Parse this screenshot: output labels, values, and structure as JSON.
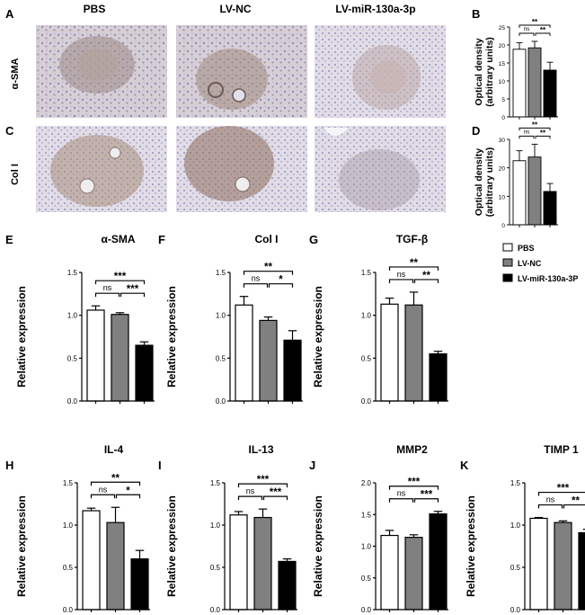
{
  "colors": {
    "pbs": "#ffffff",
    "lvnc": "#808080",
    "lvmir": "#000000",
    "axis": "#000000"
  },
  "panel_letters": {
    "A": "A",
    "B": "B",
    "C": "C",
    "D": "D",
    "E": "E",
    "F": "F",
    "G": "G",
    "H": "H",
    "I": "I",
    "J": "J",
    "K": "K"
  },
  "ihc": {
    "columns": [
      "PBS",
      "LV-NC",
      "LV-miR-130a-3p"
    ],
    "rows": [
      "α-SMA",
      "Col I"
    ]
  },
  "legend": [
    "PBS",
    "LV-NC",
    "LV-miR-130a-3P"
  ],
  "chart_data": [
    {
      "panel": "B",
      "type": "bar",
      "title": "",
      "ylabel": "Optical density (arbitrary units)",
      "categories": [
        "PBS",
        "LV-NC",
        "LV-miR-130a-3P"
      ],
      "values": [
        18.8,
        19.2,
        13
      ],
      "errors": [
        1.8,
        1.8,
        2.2
      ],
      "ylim": [
        0,
        25
      ],
      "yticks": [
        "0",
        "5",
        "10",
        "15",
        "20",
        "25"
      ],
      "sig": {
        "short1": "ns",
        "short2": "**",
        "long": "**"
      }
    },
    {
      "panel": "D",
      "type": "bar",
      "title": "",
      "ylabel": "Optical density (arbitrary units)",
      "categories": [
        "PBS",
        "LV-NC",
        "LV-miR-130a-3P"
      ],
      "values": [
        22.5,
        23.8,
        11.7
      ],
      "errors": [
        3.5,
        4.5,
        2.8
      ],
      "ylim": [
        0,
        30
      ],
      "yticks": [
        "0",
        "10",
        "20",
        "30"
      ],
      "sig": {
        "short1": "ns",
        "short2": "**",
        "long": "**"
      }
    },
    {
      "panel": "E",
      "type": "bar",
      "title": "α-SMA",
      "ylabel": "Relative expression",
      "categories": [
        "PBS",
        "LV-NC",
        "LV-miR-130a-3P"
      ],
      "values": [
        1.06,
        1.01,
        0.65
      ],
      "errors": [
        0.05,
        0.02,
        0.04
      ],
      "ylim": [
        0,
        1.5
      ],
      "yticks": [
        "0.0",
        "0.5",
        "1.0",
        "1.5"
      ],
      "sig": {
        "short1": "ns",
        "short2": "***",
        "long": "***"
      }
    },
    {
      "panel": "F",
      "type": "bar",
      "title": "Col I",
      "ylabel": "Relative expression",
      "categories": [
        "PBS",
        "LV-NC",
        "LV-miR-130a-3P"
      ],
      "values": [
        1.12,
        0.94,
        0.71
      ],
      "errors": [
        0.1,
        0.04,
        0.11
      ],
      "ylim": [
        0,
        1.5
      ],
      "yticks": [
        "0.0",
        "0.5",
        "1.0",
        "1.5"
      ],
      "sig": {
        "short1": "ns",
        "short2": "*",
        "long": "**"
      }
    },
    {
      "panel": "G",
      "type": "bar",
      "title": "TGF-β",
      "ylabel": "Relative expression",
      "categories": [
        "PBS",
        "LV-NC",
        "LV-miR-130a-3P"
      ],
      "values": [
        1.13,
        1.12,
        0.55
      ],
      "errors": [
        0.07,
        0.15,
        0.03
      ],
      "ylim": [
        0,
        1.5
      ],
      "yticks": [
        "0.0",
        "0.5",
        "1.0",
        "1.5"
      ],
      "sig": {
        "short1": "ns",
        "short2": "**",
        "long": "**"
      }
    },
    {
      "panel": "H",
      "type": "bar",
      "title": "IL-4",
      "ylabel": "Relative expression",
      "categories": [
        "PBS",
        "LV-NC",
        "LV-miR-130a-3P"
      ],
      "values": [
        1.17,
        1.03,
        0.6
      ],
      "errors": [
        0.03,
        0.18,
        0.1
      ],
      "ylim": [
        0,
        1.5
      ],
      "yticks": [
        "0.0",
        "0.5",
        "1.0",
        "1.5"
      ],
      "sig": {
        "short1": "ns",
        "short2": "*",
        "long": "**"
      }
    },
    {
      "panel": "I",
      "type": "bar",
      "title": "IL-13",
      "ylabel": "Relative expression",
      "categories": [
        "PBS",
        "LV-NC",
        "LV-miR-130a-3P"
      ],
      "values": [
        1.12,
        1.09,
        0.57
      ],
      "errors": [
        0.04,
        0.1,
        0.03
      ],
      "ylim": [
        0,
        1.5
      ],
      "yticks": [
        "0.0",
        "0.5",
        "1.0",
        "1.5"
      ],
      "sig": {
        "short1": "ns",
        "short2": "***",
        "long": "***"
      }
    },
    {
      "panel": "J",
      "type": "bar",
      "title": "MMP2",
      "ylabel": "Relative expression",
      "categories": [
        "PBS",
        "LV-NC",
        "LV-miR-130a-3P"
      ],
      "values": [
        1.17,
        1.14,
        1.51
      ],
      "errors": [
        0.08,
        0.04,
        0.04
      ],
      "ylim": [
        0,
        2.0
      ],
      "yticks": [
        "0.0",
        "0.5",
        "1.0",
        "1.5",
        "2.0"
      ],
      "sig": {
        "short1": "ns",
        "short2": "***",
        "long": "***"
      }
    },
    {
      "panel": "K",
      "type": "bar",
      "title": "TIMP 1",
      "ylabel": "Relative expression",
      "categories": [
        "PBS",
        "LV-NC",
        "LV-miR-130a-3P"
      ],
      "values": [
        1.08,
        1.03,
        0.91
      ],
      "errors": [
        0.01,
        0.02,
        0.04
      ],
      "ylim": [
        0,
        1.5
      ],
      "yticks": [
        "0.0",
        "0.5",
        "1.0",
        "1.5"
      ],
      "sig": {
        "short1": "ns",
        "short2": "**",
        "long": "***"
      }
    }
  ]
}
